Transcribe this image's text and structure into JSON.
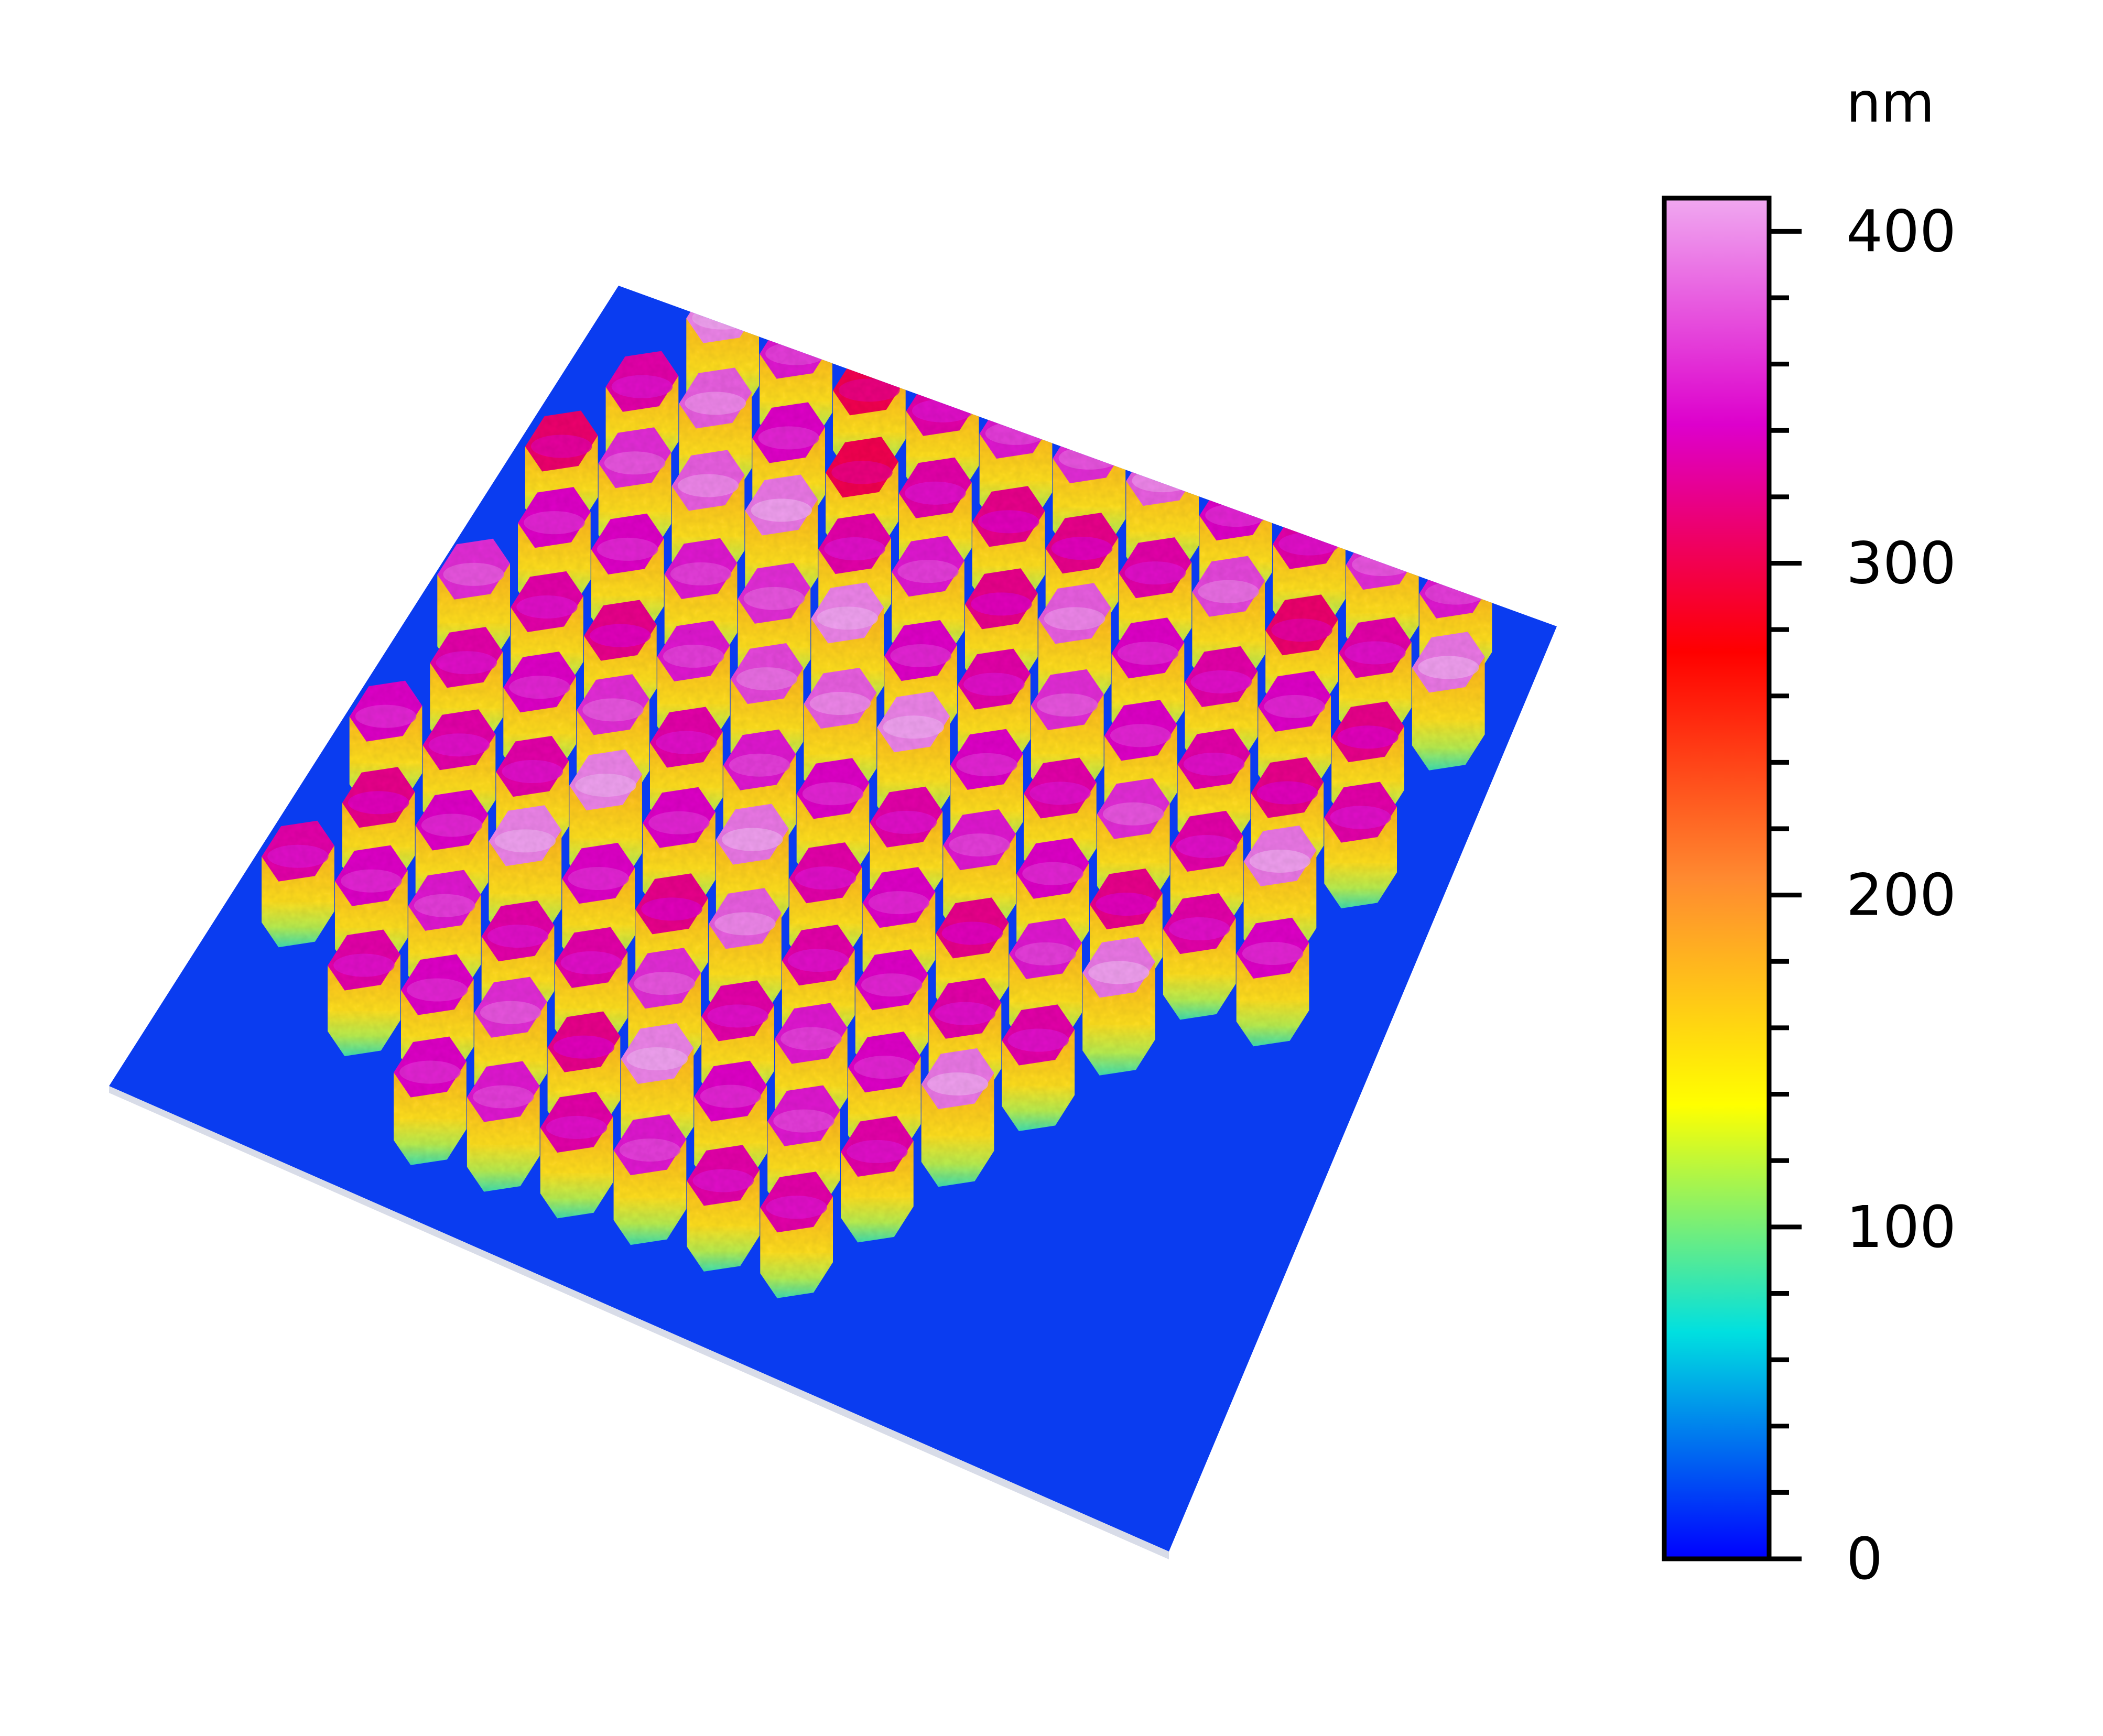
{
  "chart_data": {
    "type": "heatmap",
    "style": "3d-surface",
    "title": "",
    "xlabel": "",
    "ylabel": "",
    "colorbar": {
      "unit": "nm",
      "range": [
        0,
        410
      ],
      "major_ticks": [
        0,
        100,
        200,
        300,
        400
      ],
      "tick_labels": [
        "0",
        "100",
        "200",
        "300",
        "400"
      ],
      "minor_tick_step": 20,
      "colormap": [
        "#0000ff",
        "#00e0e0",
        "#ffff00",
        "#ff8a30",
        "#ff0000",
        "#dd00cc",
        "#f0a8f0"
      ]
    },
    "substrate_height": 20,
    "feature_shape": "hexagonal-pillar",
    "feature_height_range": [
      200,
      410
    ],
    "pillar_grid": {
      "rows": 11,
      "columns": 12,
      "peak_heights": [
        [
          null,
          395,
          350,
          300,
          330,
          350,
          360,
          380,
          340,
          330,
          360,
          350
        ],
        [
          330,
          380,
          340,
          300,
          330,
          320,
          320,
          330,
          370,
          310,
          330,
          390
        ],
        [
          310,
          360,
          380,
          390,
          330,
          350,
          320,
          380,
          340,
          330,
          340,
          320
        ],
        [
          340,
          340,
          350,
          360,
          395,
          340,
          330,
          360,
          340,
          330,
          320,
          330
        ],
        [
          360,
          330,
          320,
          350,
          370,
          380,
          395,
          340,
          330,
          360,
          330,
          390
        ],
        [
          330,
          340,
          360,
          330,
          350,
          340,
          330,
          350,
          340,
          320,
          330,
          340
        ],
        [
          340,
          330,
          330,
          395,
          340,
          390,
          330,
          340,
          320,
          350,
          390,
          null
        ],
        [
          320,
          340,
          395,
          340,
          320,
          380,
          330,
          340,
          330,
          330,
          null,
          null
        ],
        [
          330,
          340,
          350,
          330,
          330,
          360,
          330,
          350,
          340,
          390,
          null,
          null
        ],
        [
          null,
          330,
          340,
          360,
          320,
          395,
          340,
          350,
          330,
          null,
          null,
          null
        ],
        [
          null,
          null,
          null,
          340,
          350,
          330,
          350,
          330,
          330,
          null,
          null,
          null
        ]
      ]
    }
  }
}
